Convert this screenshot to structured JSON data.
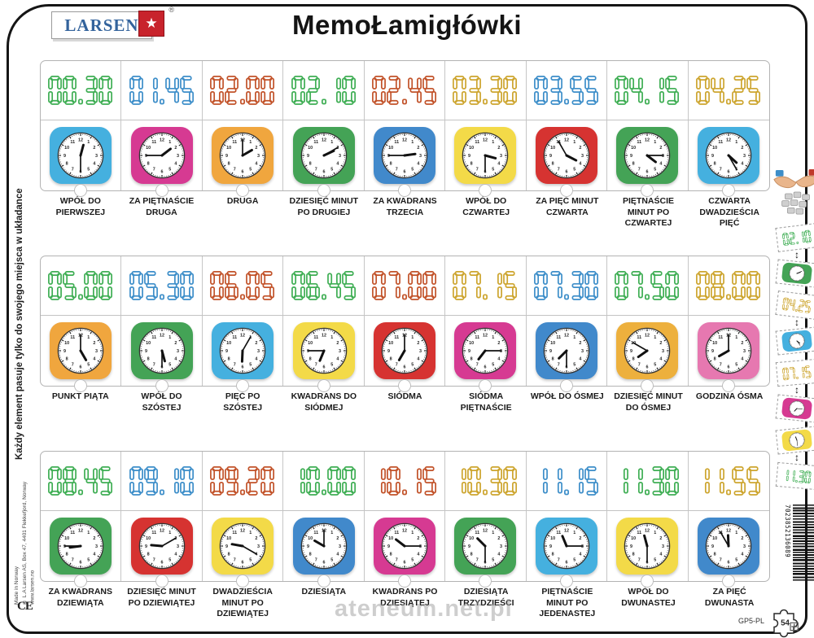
{
  "brand": {
    "logo_text": "LARSEN",
    "registered": "®",
    "star": "★"
  },
  "title": "MemoŁamigłówki",
  "side_note": "Każdy element pasuje tylko do swojego miejsca w układance",
  "imprint": [
    "Made in Norway",
    "© L.A Larsen AS, Box 47, 4401 Flekkefjord, Norway",
    "www.larsen.no"
  ],
  "ce_mark": "CE",
  "watermark": "ateneum.net.pl",
  "product_code": "GP5-PL",
  "piece_count": "54",
  "barcode": "7023852136089",
  "colors": {
    "digit_green": "#3fae54",
    "digit_blue": "#3d8ec9",
    "digit_red": "#c2532a",
    "digit_gold": "#cda52f",
    "clock_skyblue": "#45b0df",
    "clock_magenta": "#d63a92",
    "clock_orange": "#f0a63e",
    "clock_green": "#44a356",
    "clock_blue": "#4189cb",
    "clock_yellow": "#f3da48",
    "clock_red": "#d63331",
    "clock_pink": "#e678b0",
    "clock_amber": "#edb03d"
  },
  "rows": [
    {
      "cells": [
        {
          "time": "00.30",
          "digit_color": "#3fae54",
          "clock_color": "#45b0df",
          "label": "WPÓŁ DO PIERWSZEJ"
        },
        {
          "time": "01.45",
          "digit_color": "#3d8ec9",
          "clock_color": "#d63a92",
          "label": "ZA PIĘTNAŚCIE DRUGA"
        },
        {
          "time": "02.00",
          "digit_color": "#c2532a",
          "clock_color": "#f0a63e",
          "label": "DRUGA"
        },
        {
          "time": "02.10",
          "digit_color": "#3fae54",
          "clock_color": "#44a356",
          "label": "DZIESIĘĆ MINUT PO DRUGIEJ"
        },
        {
          "time": "02.45",
          "digit_color": "#c2532a",
          "clock_color": "#4189cb",
          "label": "ZA KWADRANS TRZECIA"
        },
        {
          "time": "03.30",
          "digit_color": "#cda52f",
          "clock_color": "#f3da48",
          "label": "WPÓŁ DO CZWARTEJ"
        },
        {
          "time": "03.55",
          "digit_color": "#3d8ec9",
          "clock_color": "#d63331",
          "label": "ZA PIĘĆ MINUT CZWARTA"
        },
        {
          "time": "04.15",
          "digit_color": "#3fae54",
          "clock_color": "#44a356",
          "label": "PIĘTNAŚCIE MINUT PO CZWARTEJ"
        },
        {
          "time": "04.25",
          "digit_color": "#cda52f",
          "clock_color": "#45b0df",
          "label": "CZWARTA DWADZIEŚCIA PIĘĆ"
        }
      ]
    },
    {
      "cells": [
        {
          "time": "05.00",
          "digit_color": "#3fae54",
          "clock_color": "#f0a63e",
          "label": "PUNKT PIĄTA"
        },
        {
          "time": "05.30",
          "digit_color": "#3d8ec9",
          "clock_color": "#44a356",
          "label": "WPÓŁ DO SZÓSTEJ"
        },
        {
          "time": "06.05",
          "digit_color": "#c2532a",
          "clock_color": "#45b0df",
          "label": "PIĘĆ PO SZÓSTEJ"
        },
        {
          "time": "06.45",
          "digit_color": "#3fae54",
          "clock_color": "#f3da48",
          "label": "KWADRANS DO SIÓDMEJ"
        },
        {
          "time": "07.00",
          "digit_color": "#c2532a",
          "clock_color": "#d63331",
          "label": "SIÓDMA"
        },
        {
          "time": "07.15",
          "digit_color": "#cda52f",
          "clock_color": "#d63a92",
          "label": "SIÓDMA PIĘTNAŚCIE"
        },
        {
          "time": "07.30",
          "digit_color": "#3d8ec9",
          "clock_color": "#4189cb",
          "label": "WPÓŁ DO ÓSMEJ"
        },
        {
          "time": "07.50",
          "digit_color": "#3fae54",
          "clock_color": "#edb03d",
          "label": "DZIESIĘĆ MINUT DO ÓSMEJ"
        },
        {
          "time": "08.00",
          "digit_color": "#cda52f",
          "clock_color": "#e678b0",
          "label": "GODZINA ÓSMA"
        }
      ]
    },
    {
      "cells": [
        {
          "time": "08.45",
          "digit_color": "#3fae54",
          "clock_color": "#44a356",
          "label": "ZA KWADRANS DZIEWIĄTA"
        },
        {
          "time": "09.10",
          "digit_color": "#3d8ec9",
          "clock_color": "#d63331",
          "label": "DZIESIĘĆ MINUT PO DZIEWIĄTEJ"
        },
        {
          "time": "09.20",
          "digit_color": "#c2532a",
          "clock_color": "#f3da48",
          "label": "DWADZIEŚCIA MINUT PO DZIEWIĄTEJ"
        },
        {
          "time": "10.00",
          "digit_color": "#3fae54",
          "clock_color": "#4189cb",
          "label": "DZIESIĄTA"
        },
        {
          "time": "10.15",
          "digit_color": "#c2532a",
          "clock_color": "#d63a92",
          "label": "KWADRANS PO DZIESIĄTEJ"
        },
        {
          "time": "10.30",
          "digit_color": "#cda52f",
          "clock_color": "#44a356",
          "label": "DZIESIĄTA TRZYDZIEŚCI"
        },
        {
          "time": "11.15",
          "digit_color": "#3d8ec9",
          "clock_color": "#45b0df",
          "label": "PIĘTNAŚCIE MINUT PO JEDENASTEJ"
        },
        {
          "time": "11.30",
          "digit_color": "#3fae54",
          "clock_color": "#f3da48",
          "label": "WPÓŁ DO DWUNASTEJ"
        },
        {
          "time": "11.55",
          "digit_color": "#cda52f",
          "clock_color": "#4189cb",
          "label": "ZA PIĘĆ DWUNASTA"
        }
      ]
    }
  ],
  "examples": [
    {
      "kind": "time",
      "time": "02.10",
      "color": "#3fae54",
      "tilt": -7
    },
    {
      "kind": "arrow",
      "glyph": "↕"
    },
    {
      "kind": "clock",
      "time": "02.10",
      "color": "#44a356",
      "tilt": 6
    },
    {
      "kind": "gap"
    },
    {
      "kind": "time",
      "time": "04.25",
      "color": "#cda52f",
      "tilt": 7
    },
    {
      "kind": "arrow",
      "glyph": "↕"
    },
    {
      "kind": "clock",
      "time": "04.25",
      "color": "#45b0df",
      "tilt": -6
    },
    {
      "kind": "gap"
    },
    {
      "kind": "time",
      "time": "07.15",
      "color": "#cda52f",
      "tilt": -5
    },
    {
      "kind": "arrow",
      "glyph": "↕"
    },
    {
      "kind": "clock",
      "time": "07.15",
      "color": "#d63a92",
      "tilt": 6
    },
    {
      "kind": "gap"
    },
    {
      "kind": "clock",
      "time": "11.30",
      "color": "#f3da48",
      "tilt": -6
    },
    {
      "kind": "arrow",
      "glyph": "↕"
    },
    {
      "kind": "time",
      "time": "11.30",
      "color": "#3fae54",
      "tilt": 5
    }
  ],
  "site_glyph": "⊞"
}
